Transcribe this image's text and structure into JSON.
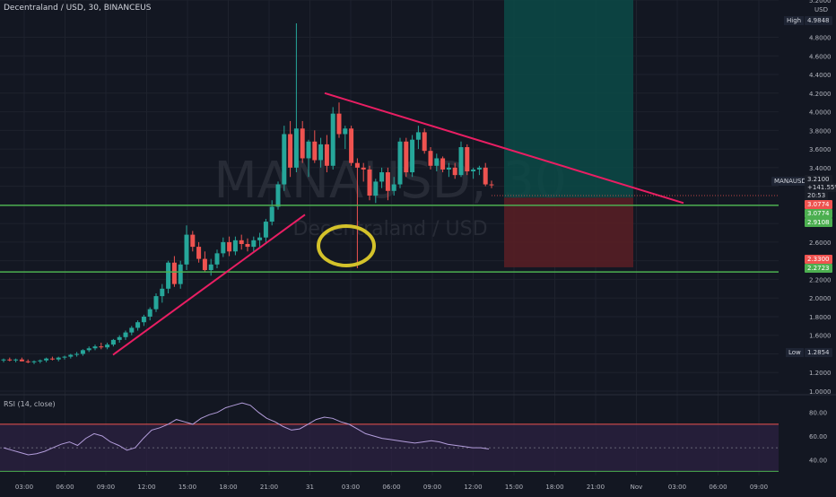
{
  "header": {
    "symbol_title": "Decentraland / USD, 30, BINANCEUS",
    "currency": "USD",
    "watermark_symbol": "MANAUSD, 30",
    "watermark_name": "Decentraland / USD"
  },
  "price_axis": {
    "labels": [
      "5.2000",
      "4.8000",
      "4.6000",
      "4.4000",
      "4.2000",
      "4.0000",
      "3.8000",
      "3.6000",
      "3.4000",
      "3.2000",
      "3.0000",
      "2.8000",
      "2.6000",
      "2.4000",
      "2.2000",
      "2.0000",
      "1.8000",
      "1.6000",
      "1.4000",
      "1.2000",
      "1.0000"
    ],
    "high_label": "High",
    "high_value": "4.9848",
    "low_label": "Low",
    "low_value": "1.2854",
    "symbol_tag": "MANAUSD",
    "last_price": "3.2100",
    "last_change": "+141.55%",
    "countdown": "20:53",
    "tag_stop": "3.0774",
    "tag_entry": "3.0774",
    "tag_entry2": "2.9108",
    "tag_level_a": "2.3300",
    "tag_level_b": "2.2723"
  },
  "rsi": {
    "title": "RSI (14, close)",
    "labels": [
      "80.00",
      "60.00",
      "40.00"
    ],
    "upper": 70,
    "lower": 30,
    "values": [
      50,
      48,
      46,
      44,
      45,
      47,
      50,
      53,
      55,
      52,
      58,
      62,
      60,
      55,
      52,
      48,
      50,
      58,
      65,
      67,
      70,
      74,
      72,
      70,
      75,
      78,
      80,
      84,
      86,
      88,
      86,
      80,
      75,
      72,
      68,
      65,
      66,
      70,
      74,
      76,
      75,
      72,
      70,
      66,
      62,
      60,
      58,
      57,
      56,
      55,
      54,
      55,
      56,
      55,
      53,
      52,
      51,
      50,
      50,
      49
    ]
  },
  "time_axis": {
    "labels": [
      "03:00",
      "06:00",
      "09:00",
      "12:00",
      "15:00",
      "18:00",
      "21:00",
      "31",
      "03:00",
      "06:00",
      "09:00",
      "12:00",
      "15:00",
      "18:00",
      "21:00",
      "Nov",
      "03:00",
      "06:00",
      "09:00"
    ]
  },
  "chart_data": {
    "type": "candlestick",
    "title": "Decentraland / USD, 30, BINANCEUS",
    "ylim": [
      1.0,
      5.2
    ],
    "colors": {
      "up": "#26a69a",
      "down": "#ef5350",
      "trendline": "#e91e63",
      "support": "#4caf50",
      "highlight": "#d4c22a",
      "profit_zone": "#0c4a47",
      "loss_zone": "#5a1f25"
    },
    "candles": [
      [
        1.33,
        1.35,
        1.31,
        1.34
      ],
      [
        1.34,
        1.36,
        1.32,
        1.33
      ],
      [
        1.33,
        1.35,
        1.31,
        1.34
      ],
      [
        1.34,
        1.36,
        1.32,
        1.32
      ],
      [
        1.32,
        1.34,
        1.3,
        1.31
      ],
      [
        1.31,
        1.33,
        1.29,
        1.32
      ],
      [
        1.32,
        1.34,
        1.3,
        1.33
      ],
      [
        1.33,
        1.36,
        1.31,
        1.35
      ],
      [
        1.35,
        1.37,
        1.33,
        1.34
      ],
      [
        1.34,
        1.37,
        1.32,
        1.36
      ],
      [
        1.36,
        1.38,
        1.34,
        1.37
      ],
      [
        1.37,
        1.4,
        1.35,
        1.39
      ],
      [
        1.39,
        1.42,
        1.37,
        1.4
      ],
      [
        1.4,
        1.45,
        1.38,
        1.44
      ],
      [
        1.44,
        1.48,
        1.42,
        1.46
      ],
      [
        1.46,
        1.5,
        1.44,
        1.48
      ],
      [
        1.48,
        1.52,
        1.45,
        1.47
      ],
      [
        1.47,
        1.52,
        1.45,
        1.5
      ],
      [
        1.5,
        1.56,
        1.48,
        1.55
      ],
      [
        1.55,
        1.6,
        1.52,
        1.58
      ],
      [
        1.58,
        1.65,
        1.55,
        1.63
      ],
      [
        1.63,
        1.7,
        1.6,
        1.68
      ],
      [
        1.68,
        1.76,
        1.65,
        1.74
      ],
      [
        1.74,
        1.82,
        1.7,
        1.8
      ],
      [
        1.8,
        1.9,
        1.76,
        1.88
      ],
      [
        1.88,
        2.05,
        1.85,
        2.02
      ],
      [
        2.02,
        2.15,
        1.95,
        2.1
      ],
      [
        2.1,
        2.4,
        2.05,
        2.38
      ],
      [
        2.38,
        2.45,
        2.12,
        2.15
      ],
      [
        2.15,
        2.4,
        2.1,
        2.36
      ],
      [
        2.36,
        2.78,
        2.3,
        2.68
      ],
      [
        2.68,
        2.72,
        2.5,
        2.55
      ],
      [
        2.55,
        2.6,
        2.38,
        2.42
      ],
      [
        2.42,
        2.5,
        2.28,
        2.3
      ],
      [
        2.3,
        2.42,
        2.24,
        2.36
      ],
      [
        2.36,
        2.52,
        2.32,
        2.48
      ],
      [
        2.48,
        2.65,
        2.44,
        2.6
      ],
      [
        2.6,
        2.66,
        2.45,
        2.5
      ],
      [
        2.5,
        2.66,
        2.46,
        2.62
      ],
      [
        2.62,
        2.68,
        2.52,
        2.58
      ],
      [
        2.58,
        2.64,
        2.5,
        2.55
      ],
      [
        2.55,
        2.66,
        2.5,
        2.62
      ],
      [
        2.62,
        2.7,
        2.55,
        2.65
      ],
      [
        2.65,
        2.85,
        2.6,
        2.82
      ],
      [
        2.82,
        3.05,
        2.78,
        2.98
      ],
      [
        2.98,
        3.25,
        2.95,
        3.22
      ],
      [
        3.22,
        3.85,
        3.15,
        3.76
      ],
      [
        3.76,
        3.9,
        3.3,
        3.4
      ],
      [
        3.4,
        4.95,
        3.35,
        3.82
      ],
      [
        3.82,
        3.9,
        3.45,
        3.5
      ],
      [
        3.5,
        3.7,
        3.3,
        3.68
      ],
      [
        3.68,
        3.8,
        3.45,
        3.48
      ],
      [
        3.48,
        3.72,
        3.4,
        3.65
      ],
      [
        3.65,
        3.75,
        3.35,
        3.42
      ],
      [
        3.42,
        4.05,
        3.38,
        3.98
      ],
      [
        3.98,
        4.1,
        3.72,
        3.76
      ],
      [
        3.76,
        3.85,
        3.6,
        3.82
      ],
      [
        3.82,
        3.85,
        3.42,
        3.45
      ],
      [
        3.45,
        3.5,
        2.32,
        3.4
      ],
      [
        3.4,
        3.45,
        3.25,
        3.38
      ],
      [
        3.38,
        3.42,
        3.05,
        3.1
      ],
      [
        3.1,
        3.28,
        3.02,
        3.25
      ],
      [
        3.25,
        3.4,
        3.18,
        3.35
      ],
      [
        3.35,
        3.4,
        3.05,
        3.15
      ],
      [
        3.15,
        3.3,
        3.1,
        3.22
      ],
      [
        3.22,
        3.72,
        3.18,
        3.68
      ],
      [
        3.68,
        3.72,
        3.3,
        3.35
      ],
      [
        3.35,
        3.75,
        3.3,
        3.7
      ],
      [
        3.7,
        3.85,
        3.6,
        3.78
      ],
      [
        3.78,
        3.82,
        3.55,
        3.58
      ],
      [
        3.58,
        3.62,
        3.38,
        3.42
      ],
      [
        3.42,
        3.55,
        3.36,
        3.5
      ],
      [
        3.5,
        3.52,
        3.35,
        3.38
      ],
      [
        3.38,
        3.45,
        3.3,
        3.4
      ],
      [
        3.4,
        3.45,
        3.28,
        3.32
      ],
      [
        3.32,
        3.68,
        3.3,
        3.62
      ],
      [
        3.62,
        3.65,
        3.32,
        3.36
      ],
      [
        3.36,
        3.4,
        3.28,
        3.38
      ],
      [
        3.38,
        3.42,
        3.32,
        3.4
      ],
      [
        3.4,
        3.45,
        3.2,
        3.22
      ],
      [
        3.22,
        3.26,
        3.18,
        3.21
      ]
    ]
  }
}
